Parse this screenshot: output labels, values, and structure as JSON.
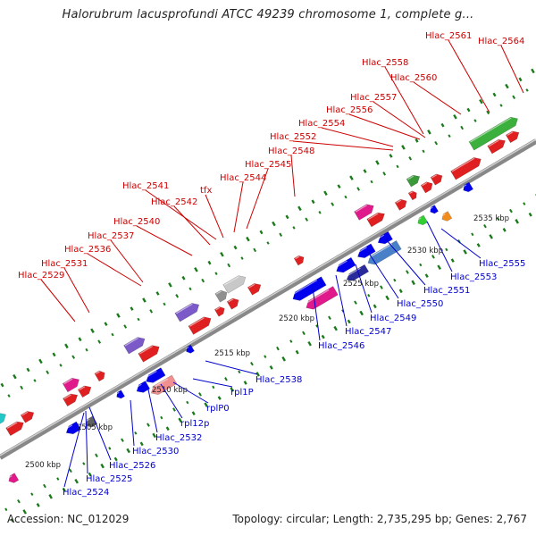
{
  "title": "Halorubrum lacusprofundi ATCC 49239 chromosome 1, complete g...",
  "footer": {
    "accession": "Accession: NC_012029",
    "summary": "Topology: circular; Length: 2,735,295 bp; Genes: 2,767"
  },
  "colors": {
    "forward_label": "#cc0000",
    "reverse_label": "#0000cc",
    "backbone": "#888888",
    "tick": "#1a7a1a"
  },
  "scale_ticks": [
    "2500 kbp",
    "2505 kbp",
    "2510 kbp",
    "2515 kbp",
    "2520 kbp",
    "2525 kbp",
    "2530 kbp",
    "2535 kbp"
  ],
  "forward_labels": [
    "Hlac_2529",
    "Hlac_2531",
    "Hlac_2536",
    "Hlac_2537",
    "Hlac_2540",
    "Hlac_2542",
    "Hlac_2541",
    "tfx",
    "Hlac_2544",
    "Hlac_2545",
    "Hlac_2548",
    "Hlac_2552",
    "Hlac_2554",
    "Hlac_2556",
    "Hlac_2557",
    "Hlac_2558",
    "Hlac_2560",
    "Hlac_2561",
    "Hlac_2564"
  ],
  "reverse_labels": [
    "Hlac_2524",
    "Hlac_2525",
    "Hlac_2526",
    "Hlac_2530",
    "Hlac_2532",
    "rpl12p",
    "rplP0",
    "rpl1P",
    "Hlac_2538",
    "Hlac_2546",
    "Hlac_2547",
    "Hlac_2549",
    "Hlac_2550",
    "Hlac_2551",
    "Hlac_2553",
    "Hlac_2555"
  ]
}
